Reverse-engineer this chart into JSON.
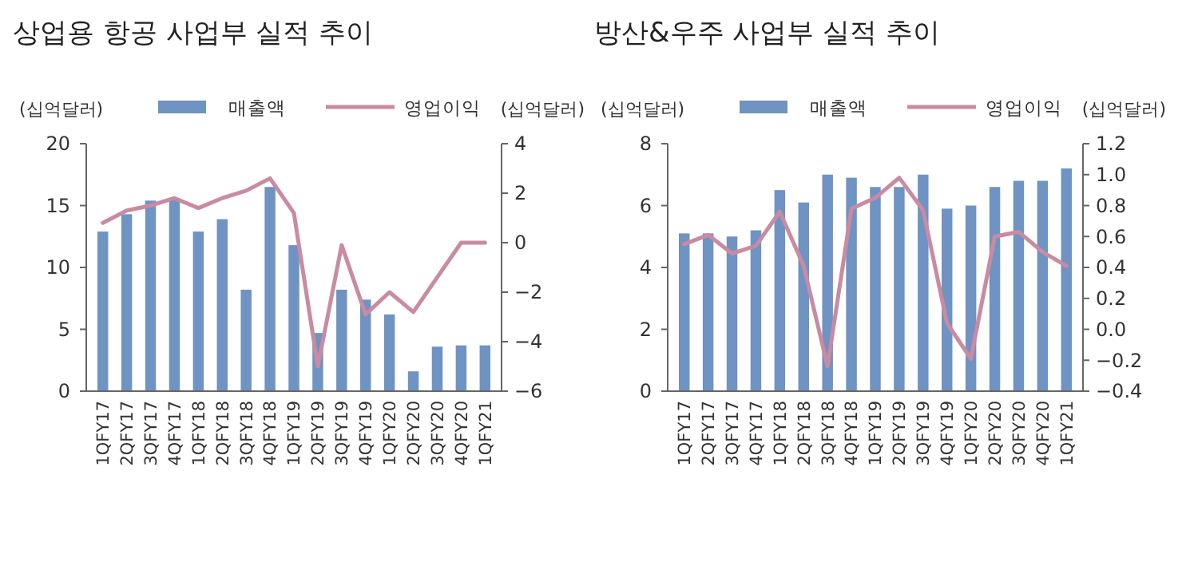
{
  "chart_data": [
    {
      "type": "bar",
      "title": "상업용 항공 사업부 실적 추이",
      "ylabel": "(십억달러)",
      "y2label": "(십억달러)",
      "categories": [
        "1QFY17",
        "2QFY17",
        "3QFY17",
        "4QFY17",
        "1QFY18",
        "2QFY18",
        "3QFY18",
        "4QFY18",
        "1QFY19",
        "2QFY19",
        "3QFY19",
        "4QFY19",
        "1QFY20",
        "2QFY20",
        "3QFY20",
        "4QFY20",
        "1QFY21"
      ],
      "series": [
        {
          "name": "매출액",
          "color": "#6f93c2",
          "values": [
            12.9,
            14.3,
            15.4,
            15.6,
            12.9,
            13.9,
            8.2,
            16.5,
            11.8,
            4.7,
            8.2,
            7.4,
            6.2,
            1.6,
            3.6,
            3.7,
            3.7
          ]
        },
        {
          "name": "영업이익",
          "type": "line",
          "axis": "y2",
          "color": "#c98ba1",
          "values": [
            0.8,
            1.3,
            1.5,
            1.8,
            1.4,
            1.8,
            2.1,
            2.6,
            1.2,
            -5.0,
            -0.1,
            -2.9,
            -2.0,
            -2.8,
            -1.4,
            0.0,
            0.0
          ]
        }
      ],
      "ylim": [
        0,
        20
      ],
      "yticks": [
        0,
        5,
        10,
        15,
        20
      ],
      "y2lim": [
        -6,
        4
      ],
      "y2ticks": [
        {
          "value": -6,
          "label": "−6"
        },
        {
          "value": -4,
          "label": "−4"
        },
        {
          "value": -2,
          "label": "−2"
        },
        0,
        2,
        4
      ],
      "legend": "top",
      "grid": false
    },
    {
      "type": "bar",
      "title": "방산&우주 사업부 실적 추이",
      "ylabel": "(십억달러)",
      "y2label": "(십억달러)",
      "categories": [
        "1QFY17",
        "2QFY17",
        "3QFY17",
        "4QFY17",
        "1QFY18",
        "2QFY18",
        "3QFY18",
        "4QFY18",
        "1QFY19",
        "2QFY19",
        "3QFY19",
        "4QFY19",
        "1QFY20",
        "2QFY20",
        "3QFY20",
        "4QFY20",
        "1QFY21"
      ],
      "series": [
        {
          "name": "매출액",
          "color": "#6f93c2",
          "values": [
            5.1,
            5.1,
            5.0,
            5.2,
            6.5,
            6.1,
            7.0,
            6.9,
            6.6,
            6.6,
            7.0,
            5.9,
            6.0,
            6.6,
            6.8,
            6.8,
            7.2
          ]
        },
        {
          "name": "영업이익",
          "type": "line",
          "axis": "y2",
          "color": "#c98ba1",
          "values": [
            0.55,
            0.61,
            0.49,
            0.54,
            0.76,
            0.41,
            -0.24,
            0.78,
            0.85,
            0.98,
            0.77,
            0.04,
            -0.19,
            0.6,
            0.63,
            0.5,
            0.41
          ]
        }
      ],
      "ylim": [
        0,
        8
      ],
      "yticks": [
        0,
        2,
        4,
        6,
        8
      ],
      "y2lim": [
        -0.4,
        1.2
      ],
      "y2ticks": [
        {
          "value": -0.4,
          "label": "−0.4"
        },
        {
          "value": -0.2,
          "label": "−0.2"
        },
        {
          "value": 0,
          "label": "0.0"
        },
        0.2,
        0.4,
        0.6,
        0.8,
        {
          "value": 1,
          "label": "1.0"
        },
        1.2
      ],
      "legend": "top",
      "grid": false
    }
  ]
}
